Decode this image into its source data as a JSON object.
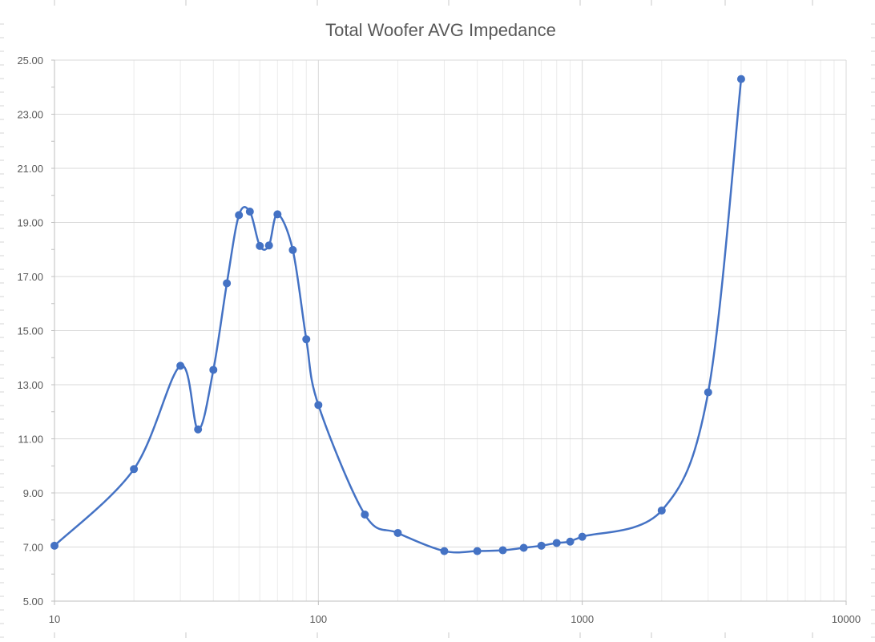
{
  "chart_data": {
    "type": "scatter",
    "title": "Total Woofer AVG Impedance",
    "xscale": "log",
    "xlim": [
      10,
      10000
    ],
    "ylim": [
      5,
      25
    ],
    "x_ticks": [
      "10",
      "100",
      "1000",
      "10000"
    ],
    "y_ticks": [
      "5.00",
      "7.00",
      "9.00",
      "11.00",
      "13.00",
      "15.00",
      "17.00",
      "19.00",
      "21.00",
      "23.00",
      "25.00"
    ],
    "grid": true,
    "legend": "none",
    "series": [
      {
        "color": "#4472c4",
        "style": "smoothed line with markers",
        "points": [
          {
            "x": 10,
            "y": 7.05
          },
          {
            "x": 20,
            "y": 9.88
          },
          {
            "x": 30,
            "y": 13.7
          },
          {
            "x": 35,
            "y": 11.35
          },
          {
            "x": 40,
            "y": 13.55
          },
          {
            "x": 45,
            "y": 16.75
          },
          {
            "x": 50,
            "y": 19.27
          },
          {
            "x": 55,
            "y": 19.4
          },
          {
            "x": 60,
            "y": 18.13
          },
          {
            "x": 65,
            "y": 18.15
          },
          {
            "x": 70,
            "y": 19.3
          },
          {
            "x": 80,
            "y": 17.98
          },
          {
            "x": 90,
            "y": 14.68
          },
          {
            "x": 100,
            "y": 12.25
          },
          {
            "x": 150,
            "y": 8.2
          },
          {
            "x": 200,
            "y": 7.52
          },
          {
            "x": 300,
            "y": 6.85
          },
          {
            "x": 400,
            "y": 6.85
          },
          {
            "x": 500,
            "y": 6.88
          },
          {
            "x": 600,
            "y": 6.97
          },
          {
            "x": 700,
            "y": 7.05
          },
          {
            "x": 800,
            "y": 7.15
          },
          {
            "x": 900,
            "y": 7.2
          },
          {
            "x": 1000,
            "y": 7.38
          },
          {
            "x": 2000,
            "y": 8.35
          },
          {
            "x": 3000,
            "y": 12.72
          },
          {
            "x": 4000,
            "y": 24.3
          }
        ]
      }
    ]
  }
}
